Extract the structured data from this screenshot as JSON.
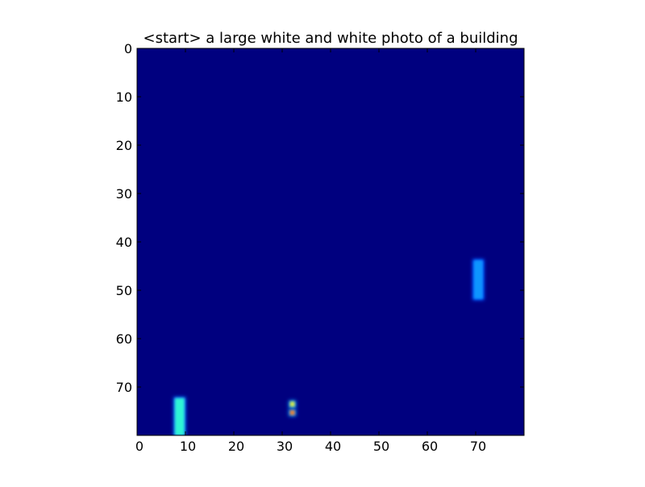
{
  "chart_data": {
    "type": "heatmap",
    "title": "<start> a large white and white photo of a building",
    "xlabel": "",
    "ylabel": "",
    "xlim": [
      0,
      80
    ],
    "ylim": [
      80,
      0
    ],
    "x_ticks": [
      0,
      10,
      20,
      30,
      40,
      50,
      60,
      70
    ],
    "y_ticks": [
      0,
      10,
      20,
      30,
      40,
      50,
      60,
      70
    ],
    "grid": false,
    "colormap": "jet",
    "background_value": 0,
    "colors": {
      "background": "#00007f",
      "bright_cyan": "#2ef5d5",
      "light_blue": "#0a95ff",
      "blue": "#0050ff",
      "yellow": "#d5e84a",
      "orange": "#f08030"
    },
    "blobs": [
      {
        "name": "right-bar",
        "x": [
          69.6,
          71.5
        ],
        "y": [
          43.8,
          51.8
        ],
        "color": "#0a95ff",
        "halo": "#0050ff"
      },
      {
        "name": "left-bar",
        "x": [
          7.8,
          9.8
        ],
        "y": [
          72.3,
          80
        ],
        "color": "#2ef5d5",
        "halo": "#0a6cff"
      },
      {
        "name": "dot-upper",
        "x": [
          31.6,
          32.6
        ],
        "y": [
          73.0,
          74.1
        ],
        "color": "#d5e84a",
        "halo": "#0a95ff"
      },
      {
        "name": "dot-lower",
        "x": [
          31.6,
          32.6
        ],
        "y": [
          74.8,
          75.8
        ],
        "color": "#f08030",
        "halo": "#0a95ff"
      }
    ]
  }
}
